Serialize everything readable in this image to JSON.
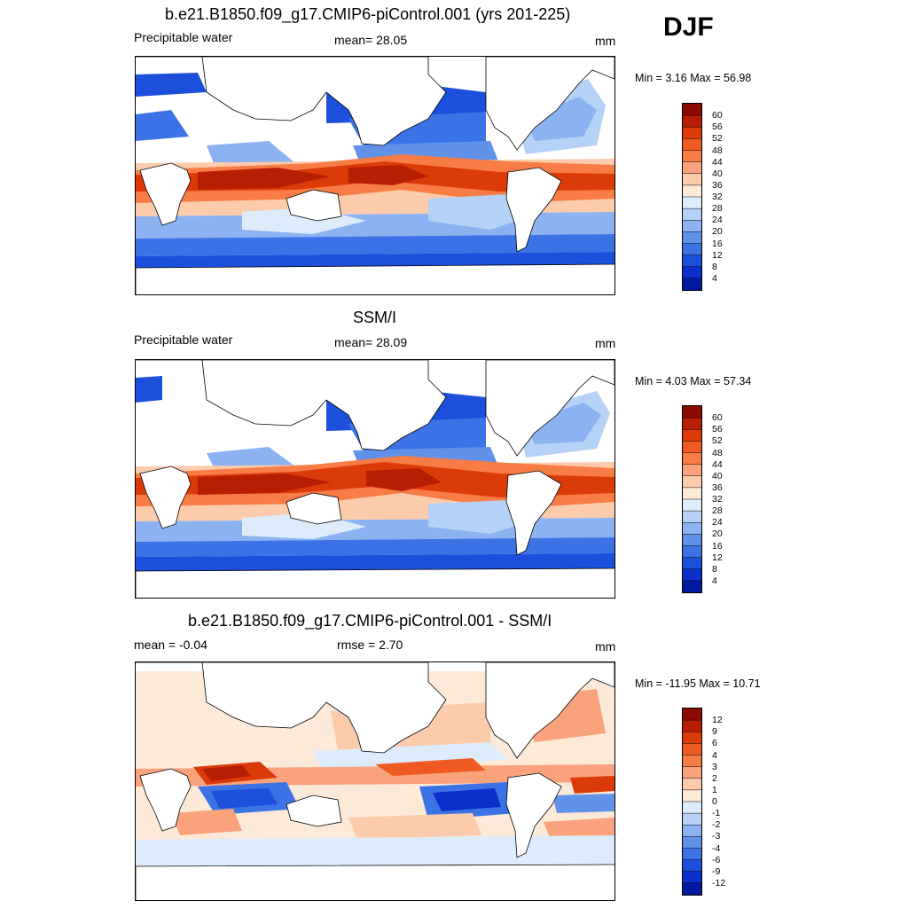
{
  "season": "DJF",
  "panels": [
    {
      "title": "b.e21.B1850.f09_g17.CMIP6-piControl.001 (yrs 201-225)",
      "left_label": "Precipitable water",
      "center_label": "mean=  28.05",
      "right_label": "mm",
      "minmax": "Min =   3.16 Max =  56.98",
      "colorbar_ticks": [
        "60",
        "56",
        "52",
        "48",
        "44",
        "40",
        "36",
        "32",
        "28",
        "24",
        "20",
        "16",
        "12",
        "8",
        "4"
      ],
      "colors": [
        "#8c0a00",
        "#b81e02",
        "#dd3a0a",
        "#ef5a23",
        "#f77c45",
        "#f9a27c",
        "#fccbab",
        "#fde9d8",
        "#ddecfb",
        "#b6d1f6",
        "#8cb2f1",
        "#6192ea",
        "#3b72e5",
        "#1c50dc",
        "#0a2fca",
        "#001a9e"
      ]
    },
    {
      "title": "SSM/I",
      "left_label": "Precipitable water",
      "center_label": "mean=  28.09",
      "right_label": "mm",
      "minmax": "Min =   4.03 Max =  57.34",
      "colorbar_ticks": [
        "60",
        "56",
        "52",
        "48",
        "44",
        "40",
        "36",
        "32",
        "28",
        "24",
        "20",
        "16",
        "12",
        "8",
        "4"
      ],
      "colors": [
        "#8c0a00",
        "#b81e02",
        "#dd3a0a",
        "#ef5a23",
        "#f77c45",
        "#f9a27c",
        "#fccbab",
        "#fde9d8",
        "#ddecfb",
        "#b6d1f6",
        "#8cb2f1",
        "#6192ea",
        "#3b72e5",
        "#1c50dc",
        "#0a2fca",
        "#001a9e"
      ]
    },
    {
      "title": "b.e21.B1850.f09_g17.CMIP6-piControl.001 - SSM/I",
      "left_label": "mean =  -0.04",
      "center_label": "rmse =   2.70",
      "right_label": "mm",
      "minmax": "Min = -11.95 Max =  10.71",
      "colorbar_ticks": [
        "12",
        "9",
        "6",
        "4",
        "3",
        "2",
        "1",
        "0",
        "-1",
        "-2",
        "-3",
        "-4",
        "-6",
        "-9",
        "-12"
      ],
      "colors": [
        "#8c0a00",
        "#b81e02",
        "#dd3a0a",
        "#ef5a23",
        "#f77c45",
        "#f9a27c",
        "#fccbab",
        "#fde9d8",
        "#ddecfb",
        "#b6d1f6",
        "#8cb2f1",
        "#6192ea",
        "#3b72e5",
        "#1c50dc",
        "#0a2fca",
        "#001a9e"
      ]
    }
  ]
}
